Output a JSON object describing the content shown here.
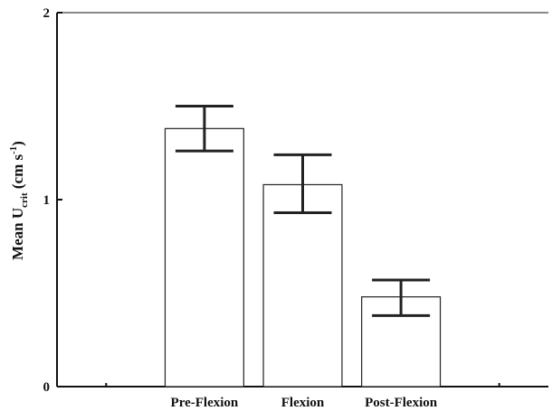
{
  "chart_data": {
    "type": "bar",
    "title": "",
    "xlabel": "",
    "ylabel": "Mean U",
    "ylabel_subscript": "crit",
    "ylabel_units": " (cm s",
    "ylabel_units_sup": "-1",
    "ylabel_close": ")",
    "categories": [
      "Pre-Flexion",
      "Flexion",
      "Post-Flexion"
    ],
    "values": [
      1.38,
      1.08,
      0.48
    ],
    "error_upper": [
      1.5,
      1.24,
      0.57
    ],
    "error_lower": [
      1.26,
      0.93,
      0.38
    ],
    "ylim": [
      0,
      2
    ],
    "yticks": [
      0,
      1,
      2
    ],
    "grid": false,
    "bar_fill": "#ffffff",
    "bar_stroke": "#222222"
  }
}
